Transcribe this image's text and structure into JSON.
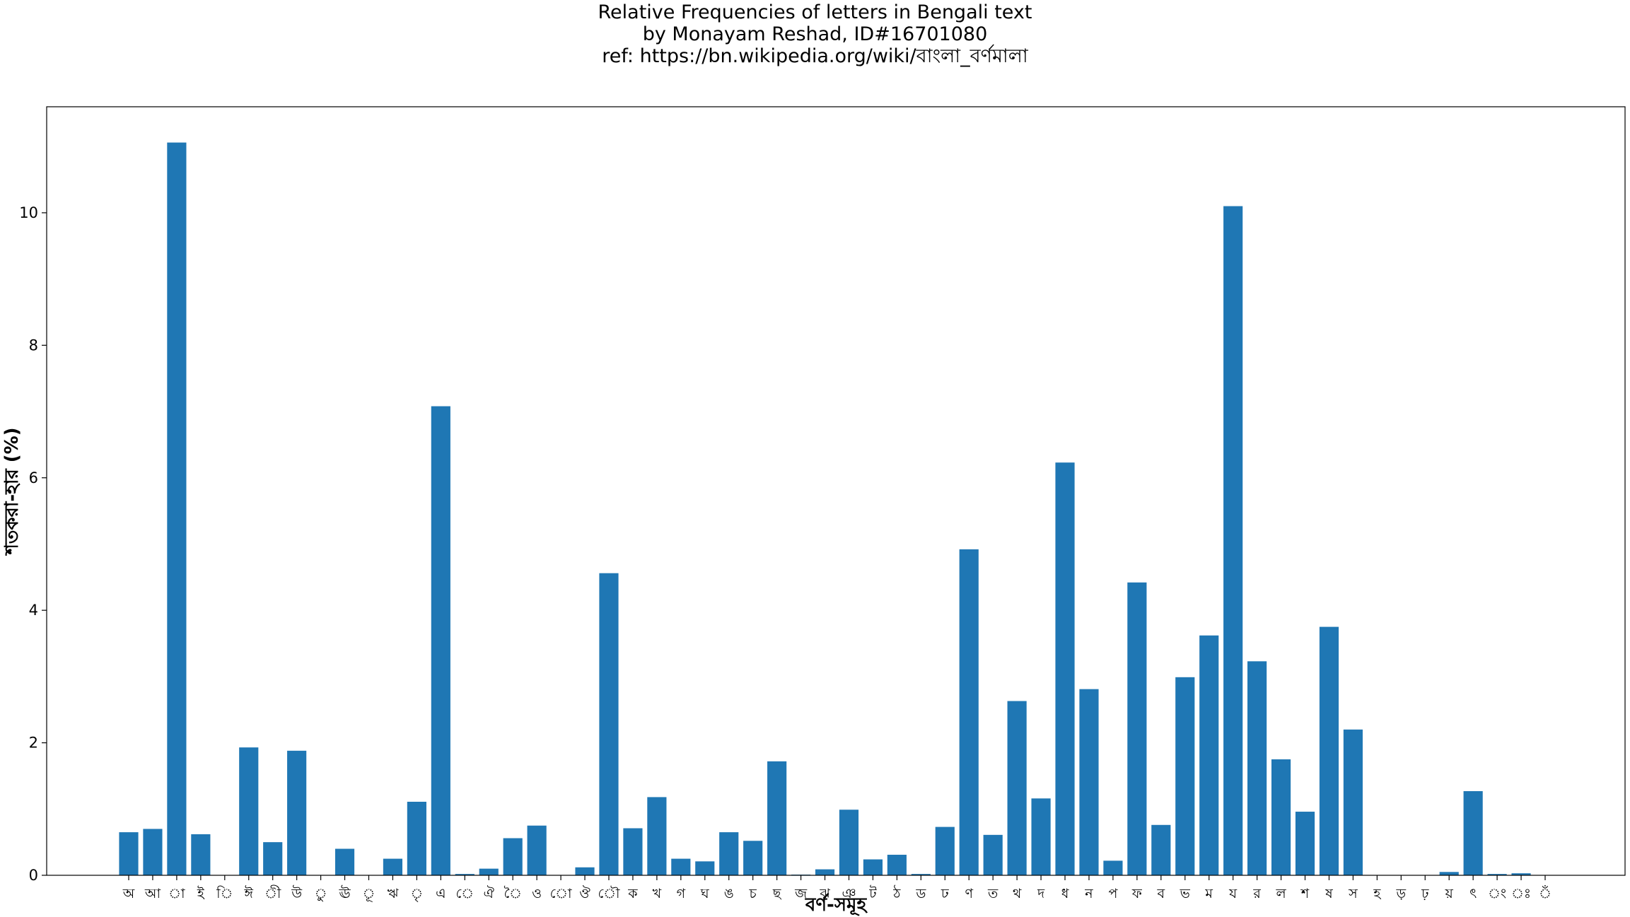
{
  "chart_data": {
    "type": "bar",
    "title_lines": [
      "Relative Frequencies of letters in Bengali text",
      "by Monayam Reshad, ID#16701080",
      "ref: https://bn.wikipedia.org/wiki/বাংলা_বর্ণমালা"
    ],
    "xlabel": "বর্ণ-সমূহ",
    "ylabel": "শতকরা-হার (%)",
    "ylim": [
      0,
      11.6
    ],
    "yticks": [
      0,
      2,
      4,
      6,
      8,
      10
    ],
    "ytick_labels": [
      "0",
      "2",
      "4",
      "6",
      "8",
      "10"
    ],
    "grid": false,
    "bar_color": "#1f77b4",
    "categories": [
      "অ",
      "আ",
      "া",
      "ই",
      "ি",
      "ঈ",
      "ী",
      "উ",
      "ু",
      "ঊ",
      "ূ",
      "ঋ",
      "ৃ",
      "এ",
      "ে",
      "ঐ",
      "ৈ",
      "ও",
      "ো",
      "ঔ",
      "ৌ",
      "ক",
      "খ",
      "গ",
      "ঘ",
      "ঙ",
      "চ",
      "ছ",
      "জ",
      "ঝ",
      "ঞ",
      "ট",
      "ঠ",
      "ড",
      "ঢ",
      "ণ",
      "ত",
      "থ",
      "দ",
      "ধ",
      "ন",
      "প",
      "ফ",
      "ব",
      "ভ",
      "ম",
      "য",
      "র",
      "ল",
      "শ",
      "ষ",
      "স",
      "হ",
      "ড়",
      "ঢ়",
      "য়",
      "ৎ",
      "ং",
      "ঃ",
      "ঁ"
    ],
    "values": [
      0.65,
      0.7,
      11.06,
      0.62,
      0.0,
      1.93,
      0.5,
      1.88,
      0.0,
      0.4,
      0.0,
      0.25,
      1.11,
      7.08,
      0.02,
      0.1,
      0.56,
      0.75,
      0.0,
      0.12,
      4.56,
      0.71,
      1.18,
      0.25,
      0.21,
      0.65,
      0.52,
      1.72,
      0.01,
      0.09,
      0.99,
      0.24,
      0.31,
      0.02,
      0.73,
      4.92,
      0.61,
      2.63,
      1.16,
      6.23,
      2.81,
      0.22,
      4.42,
      0.76,
      2.99,
      3.62,
      10.1,
      3.23,
      1.75,
      0.96,
      3.75,
      2.2,
      0.0,
      0.0,
      0.0,
      0.05,
      1.27,
      0.02,
      0.03,
      0.0
    ]
  }
}
